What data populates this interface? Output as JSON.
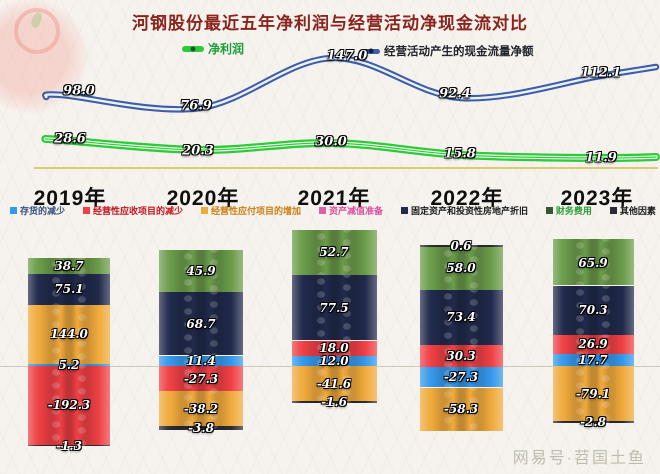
{
  "title": "河钢股份最近五年净利润与经营活动净现金流对比",
  "line_legend": {
    "net_profit": "净利润",
    "cash_flow": "经营活动产生的现金流量净额"
  },
  "colors": {
    "net_profit_line": "#2fca3a",
    "cash_flow_line": "#3a5ea8",
    "title_text": "#8a241c",
    "zero_axis": "#cfc9bd",
    "x_axis": "#d6c45a"
  },
  "years": [
    "2019年",
    "2020年",
    "2021年",
    "2022年",
    "2023年"
  ],
  "line_values": {
    "net_profit": [
      "28.6",
      "20.3",
      "30.0",
      "15.8",
      "11.9"
    ],
    "cash_flow": [
      "98.0",
      "76.9",
      "147.0",
      "92.4",
      "112.1"
    ]
  },
  "factors": {
    "inventory": {
      "label": "存货的减少",
      "color": "#3598ea",
      "text_color": "#33527e"
    },
    "receivables": {
      "label": "经营性应收项目的减少",
      "color": "#ef4045",
      "text_color": "#c41420"
    },
    "payables": {
      "label": "经营性应付项目的增加",
      "color": "#f0aa3c",
      "text_color": "#cc7e14"
    },
    "impairment": {
      "label": "资产减值准备",
      "color": "#e060a8",
      "text_color": "#d8509e"
    },
    "depreciation": {
      "label": "固定资产和投资性房地产折旧",
      "color": "#212a4c",
      "text_color": "#1c1c1c"
    },
    "finance": {
      "label": "财务费用",
      "color": "#6b9c4a",
      "text_color": "#2f9e3f",
      "swatch": "#35592f"
    },
    "other": {
      "label": "其他因素",
      "color": "#2b2b33",
      "text_color": "#1c1c1c"
    }
  },
  "legend_order": [
    "inventory",
    "receivables",
    "payables",
    "impairment",
    "depreciation",
    "finance",
    "other"
  ],
  "columns": [
    {
      "year": "2019年",
      "segments": [
        [
          "finance",
          "38.7"
        ],
        [
          "depreciation",
          "75.1"
        ],
        [
          "payables",
          "144.0"
        ],
        [
          "inventory",
          "5.2"
        ],
        [
          "receivables",
          "-192.3"
        ],
        [
          "other",
          "-1.3"
        ]
      ]
    },
    {
      "year": "2020年",
      "segments": [
        [
          "finance",
          "45.9"
        ],
        [
          "depreciation",
          "68.7"
        ],
        [
          "inventory",
          "11.4"
        ],
        [
          "receivables",
          "-27.3"
        ],
        [
          "payables",
          "-38.2"
        ],
        [
          "other",
          "-3.8"
        ]
      ]
    },
    {
      "year": "2021年",
      "segments": [
        [
          "finance",
          "52.7"
        ],
        [
          "depreciation",
          "77.5"
        ],
        [
          "receivables",
          "18.0"
        ],
        [
          "inventory",
          "12.0"
        ],
        [
          "payables",
          "-41.6"
        ],
        [
          "other",
          "-1.6"
        ]
      ]
    },
    {
      "year": "2022年",
      "segments": [
        [
          "other",
          "0.6"
        ],
        [
          "finance",
          "58.0"
        ],
        [
          "depreciation",
          "73.4"
        ],
        [
          "receivables",
          "30.3"
        ],
        [
          "inventory",
          "-27.3"
        ],
        [
          "payables",
          "-58.3"
        ]
      ]
    },
    {
      "year": "2023年",
      "segments": [
        [
          "finance",
          "65.9"
        ],
        [
          "depreciation",
          "70.3"
        ],
        [
          "receivables",
          "26.9"
        ],
        [
          "inventory",
          "17.7"
        ],
        [
          "payables",
          "-79.1"
        ],
        [
          "other",
          "-2.8"
        ]
      ]
    }
  ],
  "watermark": "网易号·苕国土鱼",
  "chart_data": [
    {
      "type": "line",
      "title": "河钢股份最近五年净利润与经营活动净现金流对比",
      "categories": [
        "2019年",
        "2020年",
        "2021年",
        "2022年",
        "2023年"
      ],
      "series": [
        {
          "name": "净利润",
          "values": [
            28.6,
            20.3,
            30.0,
            15.8,
            11.9
          ]
        },
        {
          "name": "经营活动产生的现金流量净额",
          "values": [
            98.0,
            76.9,
            147.0,
            92.4,
            112.1
          ]
        }
      ],
      "legend_position": "top",
      "grid": false
    },
    {
      "type": "bar",
      "subtype": "stacked-diverging",
      "categories": [
        "2019年",
        "2020年",
        "2021年",
        "2022年",
        "2023年"
      ],
      "series": [
        {
          "name": "存货的减少",
          "values": [
            5.2,
            11.4,
            12.0,
            -27.3,
            17.7
          ]
        },
        {
          "name": "经营性应收项目的减少",
          "values": [
            -192.3,
            -27.3,
            18.0,
            30.3,
            26.9
          ]
        },
        {
          "name": "经营性应付项目的增加",
          "values": [
            144.0,
            -38.2,
            -41.6,
            -58.3,
            -79.1
          ]
        },
        {
          "name": "资产减值准备",
          "values": [
            null,
            null,
            null,
            null,
            null
          ]
        },
        {
          "name": "固定资产和投资性房地产折旧",
          "values": [
            75.1,
            68.7,
            77.5,
            73.4,
            70.3
          ]
        },
        {
          "name": "财务费用",
          "values": [
            38.7,
            45.9,
            52.7,
            58.0,
            65.9
          ]
        },
        {
          "name": "其他因素",
          "values": [
            -1.3,
            -3.8,
            -1.6,
            0.6,
            -2.8
          ]
        }
      ],
      "note": "each year column is independently scaled; values labeled on segments"
    }
  ]
}
